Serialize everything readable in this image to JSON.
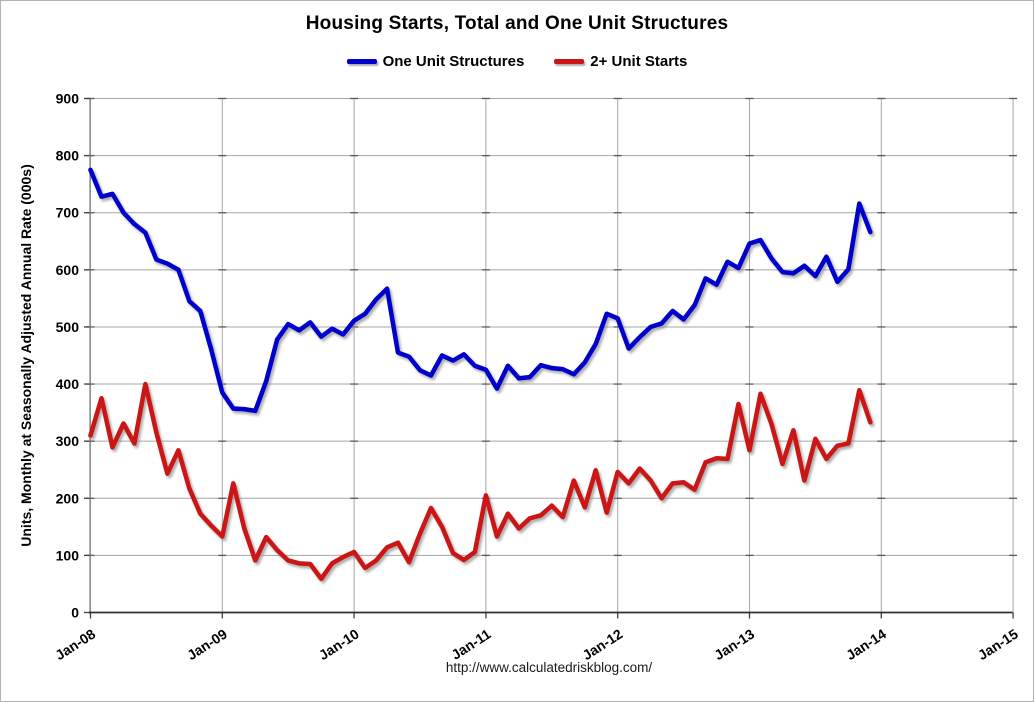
{
  "chart_data": {
    "type": "line",
    "title": "Housing Starts, Total and One Unit Structures",
    "ylabel": "Units, Monthly at Seasonally Adjusted Annual Rate (000s)",
    "xlabel": "",
    "ylim": [
      0,
      900
    ],
    "ytick_step": 100,
    "grid": true,
    "legend_position": "top-center",
    "source_url": "http://www.calculatedriskblog.com/",
    "x_tick_labels": [
      "Jan-08",
      "Jan-09",
      "Jan-10",
      "Jan-11",
      "Jan-12",
      "Jan-13",
      "Jan-14",
      "Jan-15"
    ],
    "x_total_months": 84,
    "months": [
      "Jan-08",
      "Feb-08",
      "Mar-08",
      "Apr-08",
      "May-08",
      "Jun-08",
      "Jul-08",
      "Aug-08",
      "Sep-08",
      "Oct-08",
      "Nov-08",
      "Dec-08",
      "Jan-09",
      "Feb-09",
      "Mar-09",
      "Apr-09",
      "May-09",
      "Jun-09",
      "Jul-09",
      "Aug-09",
      "Sep-09",
      "Oct-09",
      "Nov-09",
      "Dec-09",
      "Jan-10",
      "Feb-10",
      "Mar-10",
      "Apr-10",
      "May-10",
      "Jun-10",
      "Jul-10",
      "Aug-10",
      "Sep-10",
      "Oct-10",
      "Nov-10",
      "Dec-10",
      "Jan-11",
      "Feb-11",
      "Mar-11",
      "Apr-11",
      "May-11",
      "Jun-11",
      "Jul-11",
      "Aug-11",
      "Sep-11",
      "Oct-11",
      "Nov-11",
      "Dec-11",
      "Jan-12",
      "Feb-12",
      "Mar-12",
      "Apr-12",
      "May-12",
      "Jun-12",
      "Jul-12",
      "Aug-12",
      "Sep-12",
      "Oct-12",
      "Nov-12",
      "Dec-12",
      "Jan-13",
      "Feb-13",
      "Mar-13",
      "Apr-13",
      "May-13",
      "Jun-13",
      "Jul-13",
      "Aug-13",
      "Sep-13",
      "Oct-13",
      "Nov-13",
      "Dec-13"
    ],
    "series": [
      {
        "name": "One Unit Structures",
        "color": "#0000CC",
        "values": [
          775,
          728,
          733,
          700,
          680,
          665,
          618,
          611,
          600,
          545,
          528,
          460,
          385,
          357,
          356,
          353,
          405,
          478,
          505,
          494,
          508,
          483,
          497,
          487,
          511,
          523,
          548,
          567,
          455,
          448,
          424,
          415,
          450,
          441,
          452,
          432,
          425,
          392,
          432,
          410,
          412,
          433,
          428,
          426,
          417,
          438,
          470,
          523,
          515,
          462,
          482,
          500,
          506,
          528,
          513,
          538,
          585,
          574,
          614,
          603,
          646,
          652,
          620,
          596,
          594,
          607,
          589,
          623,
          579,
          601,
          716,
          666
        ]
      },
      {
        "name": "2+ Unit Starts",
        "color": "#CC1414",
        "values": [
          310,
          375,
          289,
          331,
          296,
          400,
          315,
          243,
          284,
          217,
          173,
          152,
          133,
          226,
          147,
          91,
          132,
          109,
          91,
          86,
          85,
          59,
          86,
          97,
          106,
          78,
          91,
          114,
          122,
          88,
          138,
          183,
          150,
          104,
          92,
          106,
          205,
          133,
          173,
          147,
          165,
          170,
          187,
          167,
          231,
          184,
          249,
          175,
          246,
          226,
          252,
          231,
          200,
          226,
          228,
          215,
          263,
          270,
          269,
          365,
          284,
          383,
          330,
          260,
          319,
          231,
          304,
          269,
          292,
          296,
          389,
          333
        ]
      }
    ]
  }
}
